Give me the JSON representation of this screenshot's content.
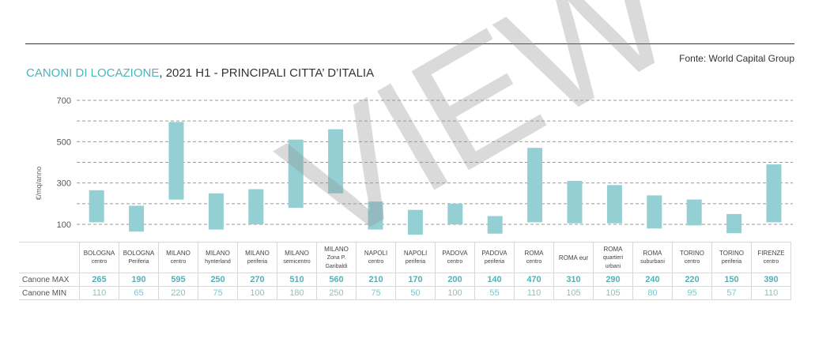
{
  "source": "Fonte: World Capital Group",
  "title_accent": "CANONI DI LOCAZIONE",
  "title_rest": ", 2021 H1 - PRINCIPALI CITTA’ D’ITALIA",
  "watermark": "VIEW",
  "colors": {
    "bar": "#93cfd3",
    "accent": "#4fb3ba"
  },
  "chart_data": {
    "type": "bar",
    "subtype": "floating-range",
    "ylabel": "€/mq/anno",
    "yticks": [
      100,
      300,
      500,
      700
    ],
    "ylim": [
      40,
      700
    ],
    "grid": true,
    "row_labels": {
      "max": "Canone MAX",
      "min": "Canone MIN"
    },
    "categories": [
      {
        "line1": "BOLOGNA",
        "line2": "centro",
        "line3": "",
        "max": 265,
        "min": 110
      },
      {
        "line1": "BOLOGNA",
        "line2": "Periferia",
        "line3": "",
        "max": 190,
        "min": 65
      },
      {
        "line1": "MILANO",
        "line2": "centro",
        "line3": "",
        "max": 595,
        "min": 220
      },
      {
        "line1": "MILANO",
        "line2": "hynterland",
        "line3": "",
        "max": 250,
        "min": 75
      },
      {
        "line1": "MILANO",
        "line2": "periferia",
        "line3": "",
        "max": 270,
        "min": 100
      },
      {
        "line1": "MILANO",
        "line2": "semicentro",
        "line3": "",
        "max": 510,
        "min": 180
      },
      {
        "line1": "MILANO",
        "line2": "Zona P.",
        "line3": "Garibaldi",
        "max": 560,
        "min": 250
      },
      {
        "line1": "NAPOLI",
        "line2": "centro",
        "line3": "",
        "max": 210,
        "min": 75
      },
      {
        "line1": "NAPOLI",
        "line2": "periferia",
        "line3": "",
        "max": 170,
        "min": 50
      },
      {
        "line1": "PADOVA",
        "line2": "centro",
        "line3": "",
        "max": 200,
        "min": 100
      },
      {
        "line1": "PADOVA",
        "line2": "periferia",
        "line3": "",
        "max": 140,
        "min": 55
      },
      {
        "line1": "ROMA",
        "line2": "centro",
        "line3": "",
        "max": 470,
        "min": 110
      },
      {
        "line1": "ROMA eur",
        "line2": "",
        "line3": "",
        "max": 310,
        "min": 105
      },
      {
        "line1": "ROMA",
        "line2": "quartieri",
        "line3": "urbani",
        "max": 290,
        "min": 105
      },
      {
        "line1": "ROMA",
        "line2": "suburbani",
        "line3": "",
        "max": 240,
        "min": 80
      },
      {
        "line1": "TORINO",
        "line2": "centro",
        "line3": "",
        "max": 220,
        "min": 95
      },
      {
        "line1": "TORINO",
        "line2": "periferia",
        "line3": "",
        "max": 150,
        "min": 57
      },
      {
        "line1": "FIRENZE",
        "line2": "centro",
        "line3": "",
        "max": 390,
        "min": 110
      }
    ]
  }
}
